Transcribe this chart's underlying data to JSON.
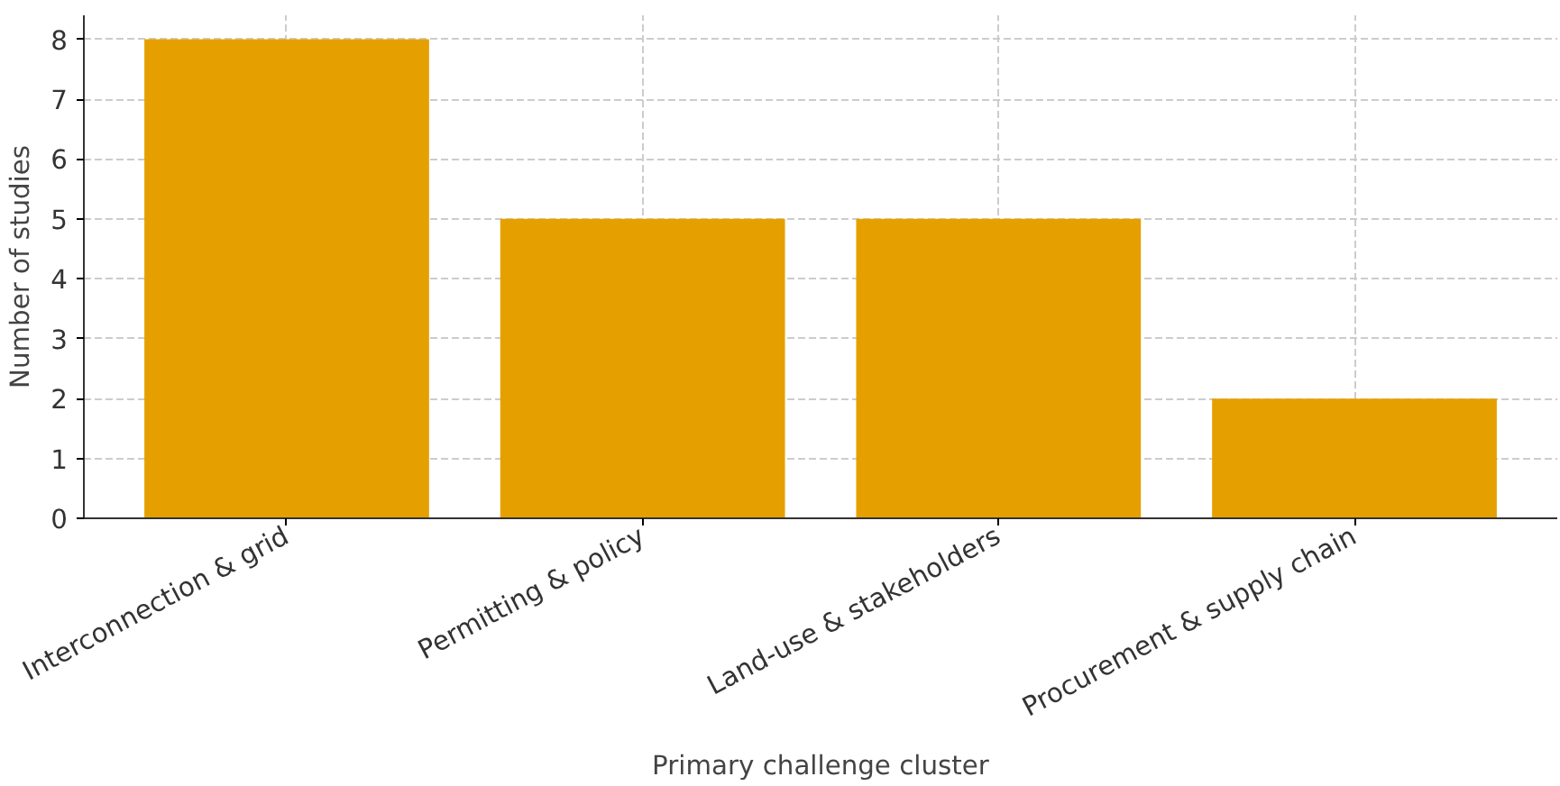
{
  "chart_data": {
    "type": "bar",
    "categories": [
      "Interconnection & grid",
      "Permitting & policy",
      "Land-use & stakeholders",
      "Procurement & supply chain"
    ],
    "values": [
      8,
      5,
      5,
      2
    ],
    "color": "#e5a000",
    "xlabel": "Primary challenge cluster",
    "ylabel": "Number of studies",
    "ylim": [
      0,
      8.4
    ],
    "yticks": [
      0,
      1,
      2,
      3,
      4,
      5,
      6,
      7,
      8
    ],
    "grid": true
  }
}
